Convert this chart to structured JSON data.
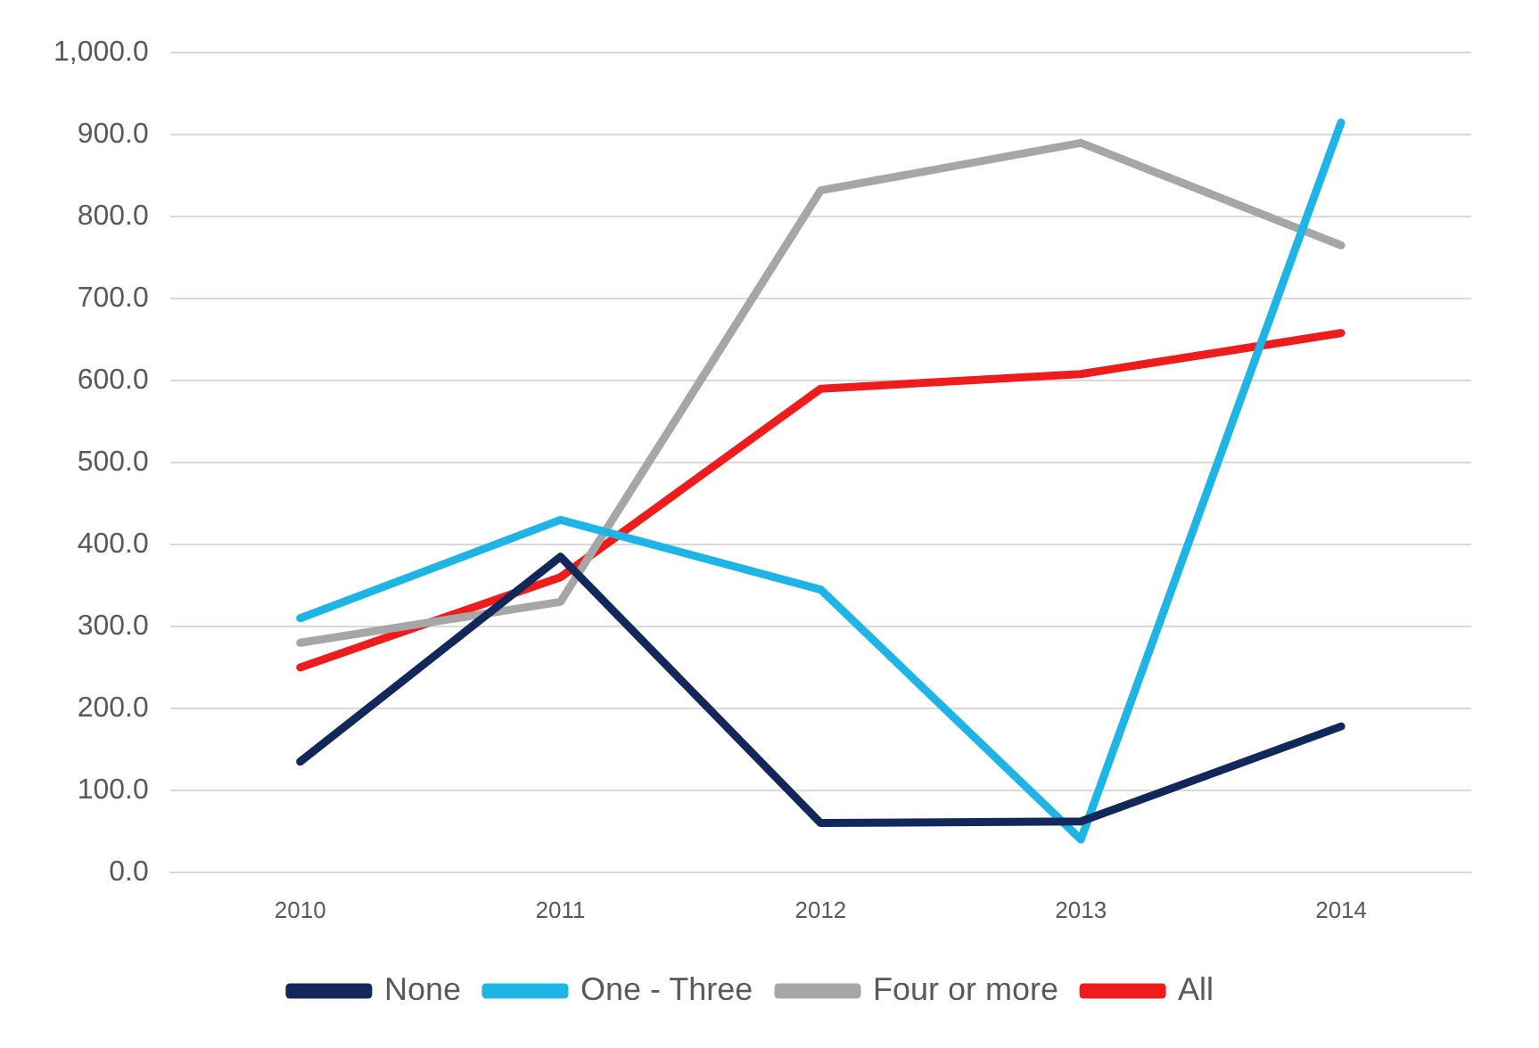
{
  "chart_data": {
    "type": "line",
    "categories": [
      "2010",
      "2011",
      "2012",
      "2013",
      "2014"
    ],
    "series": [
      {
        "name": "None",
        "color": "#13285a",
        "values": [
          135,
          385,
          60,
          62,
          178
        ]
      },
      {
        "name": "One - Three",
        "color": "#1fb4e6",
        "values": [
          310,
          430,
          345,
          40,
          915
        ]
      },
      {
        "name": "Four or more",
        "color": "#a6a6a6",
        "values": [
          280,
          330,
          832,
          890,
          765
        ]
      },
      {
        "name": "All",
        "color": "#ee1c1c",
        "values": [
          250,
          360,
          590,
          608,
          658
        ]
      }
    ],
    "ylim": [
      0,
      1000
    ],
    "yticks": [
      {
        "value": 0,
        "label": "0.0"
      },
      {
        "value": 100,
        "label": "100.0"
      },
      {
        "value": 200,
        "label": "200.0"
      },
      {
        "value": 300,
        "label": "300.0"
      },
      {
        "value": 400,
        "label": "400.0"
      },
      {
        "value": 500,
        "label": "500.0"
      },
      {
        "value": 600,
        "label": "600.0"
      },
      {
        "value": 700,
        "label": "700.0"
      },
      {
        "value": 800,
        "label": "800.0"
      },
      {
        "value": 900,
        "label": "900.0"
      },
      {
        "value": 1000,
        "label": "1,000.0"
      }
    ],
    "grid": "y",
    "legend": "bottom",
    "marker": "none",
    "line_style": "solid"
  }
}
